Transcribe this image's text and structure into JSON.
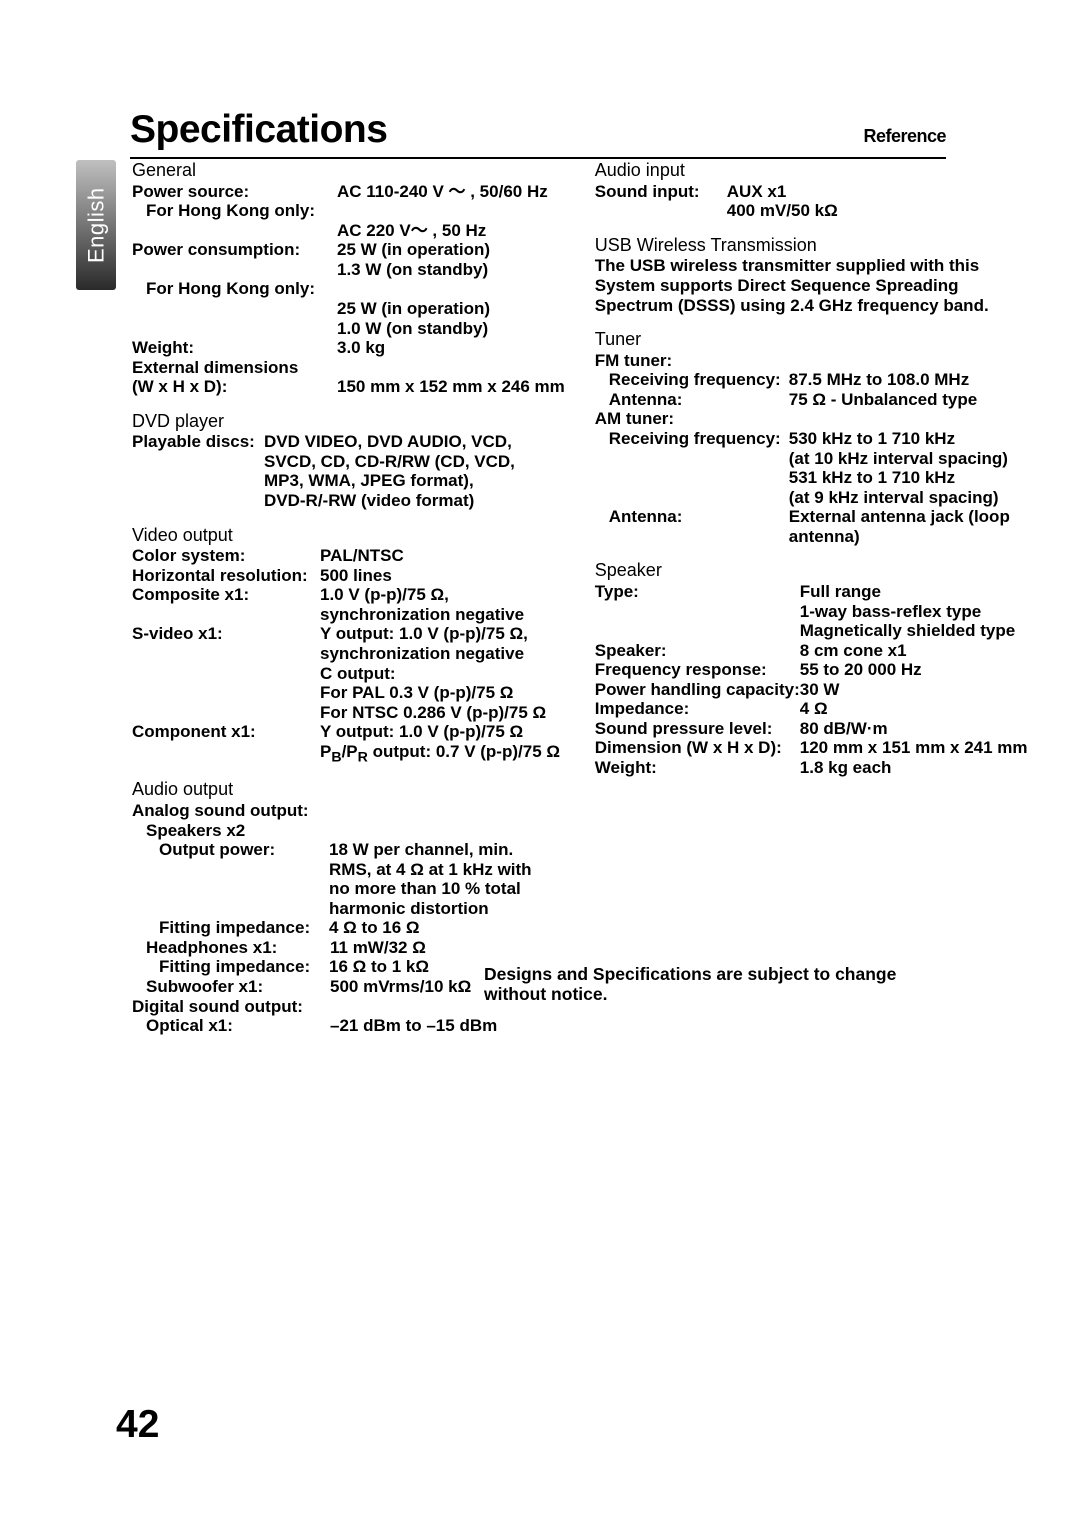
{
  "header": {
    "title": "Specifications",
    "subtitle": "Reference",
    "lang_tab": "English"
  },
  "page_number": "42",
  "notice": "Designs and Specifications are subject to change without notice.",
  "left": {
    "general": {
      "heading": "General",
      "rows": [
        {
          "label": "Power source:",
          "value": "AC 110-240 V ～ , 50/60 Hz"
        },
        {
          "label": "For Hong Kong only:",
          "indent": 1
        },
        {
          "value": "AC 220 V～ , 50 Hz"
        },
        {
          "label": "Power consumption:",
          "value": "25 W (in operation)"
        },
        {
          "value": "1.3 W (on standby)"
        },
        {
          "label": "For Hong Kong only:",
          "indent": 1
        },
        {
          "value": "25 W (in operation)"
        },
        {
          "value": "1.0 W (on standby)"
        },
        {
          "label": "Weight:",
          "value": "3.0 kg"
        },
        {
          "label": "External dimensions"
        },
        {
          "label": "(W x H x D):",
          "value": "150 mm x 152 mm x 246 mm"
        }
      ]
    },
    "dvd": {
      "heading": "DVD player",
      "rows": [
        {
          "label": "Playable discs:",
          "value": "DVD VIDEO, DVD AUDIO, VCD,",
          "wide_label": false
        },
        {
          "value": "SVCD, CD, CD-R/RW (CD, VCD,"
        },
        {
          "value": "MP3, WMA, JPEG format),"
        },
        {
          "value": "DVD-R/-RW (video format)"
        }
      ]
    },
    "video": {
      "heading": "Video output",
      "rows": [
        {
          "label": "Color system:",
          "value": "PAL/NTSC"
        },
        {
          "label": "Horizontal resolution:",
          "value": "500 lines"
        },
        {
          "label": "Composite x1:",
          "value": "1.0 V (p-p)/75 Ω,"
        },
        {
          "value": "synchronization negative"
        },
        {
          "label": "S-video x1:",
          "value": "Y output: 1.0 V (p-p)/75 Ω,"
        },
        {
          "value": "synchronization negative"
        },
        {
          "value": "C output:"
        },
        {
          "value": "For PAL 0.3 V (p-p)/75 Ω"
        },
        {
          "value": "For NTSC 0.286 V (p-p)/75 Ω"
        },
        {
          "label": "Component x1:",
          "value": "Y output: 1.0 V (p-p)/75 Ω"
        },
        {
          "value_html": "P<sub>B</sub>/P<sub>R</sub> output: 0.7 V (p-p)/75 Ω"
        }
      ]
    },
    "audio_out": {
      "heading": "Audio output",
      "rows": [
        {
          "label": "Analog sound output:"
        },
        {
          "label": "Speakers x2",
          "indent": 1
        },
        {
          "label": "Output power:",
          "value": "18 W per channel, min.",
          "indent": 2,
          "labelw": 170
        },
        {
          "value": "RMS, at 4 Ω at 1 kHz with",
          "indent_val": true
        },
        {
          "value": "no more than 10 % total",
          "indent_val": true
        },
        {
          "value": "harmonic distortion",
          "indent_val": true
        },
        {
          "label": "Fitting impedance:",
          "value": "4 Ω to 16 Ω",
          "indent": 2,
          "labelw": 170
        },
        {
          "label": "Headphones x1:",
          "value": "11 mW/32 Ω",
          "indent": 1,
          "labelw": 184
        },
        {
          "label": "Fitting impedance:",
          "value": "16 Ω to 1 kΩ",
          "indent": 2,
          "labelw": 170
        },
        {
          "label": "Subwoofer x1:",
          "value": "500 mVrms/10 kΩ",
          "indent": 1,
          "labelw": 184
        },
        {
          "label": "Digital sound output:"
        },
        {
          "label": "Optical x1:",
          "value": "–21 dBm to –15 dBm",
          "indent": 1,
          "labelw": 184
        }
      ]
    }
  },
  "right": {
    "audio_in": {
      "heading": "Audio input",
      "rows": [
        {
          "label": "Sound input:",
          "value": "AUX x1"
        },
        {
          "value": "400 mV/50 kΩ"
        }
      ]
    },
    "usb": {
      "heading": "USB Wireless Transmission",
      "para": "The USB wireless transmitter supplied with this System supports Direct Sequence Spreading Spectrum (DSSS) using 2.4 GHz frequency band."
    },
    "tuner": {
      "heading": "Tuner",
      "rows": [
        {
          "label": "FM tuner:"
        },
        {
          "label": "Receiving frequency:",
          "value": "87.5 MHz to 108.0 MHz",
          "indent": 1
        },
        {
          "label": "Antenna:",
          "value": "75 Ω - Unbalanced type",
          "indent": 1
        },
        {
          "label": "AM tuner:"
        },
        {
          "label": "Receiving frequency:",
          "value": "530 kHz to 1 710 kHz",
          "indent": 1
        },
        {
          "value": "(at 10 kHz interval spacing)"
        },
        {
          "value": "531 kHz to 1 710 kHz"
        },
        {
          "value": "(at 9 kHz interval spacing)"
        },
        {
          "label": "Antenna:",
          "value": "External antenna jack (loop",
          "indent": 1
        },
        {
          "value": "antenna)"
        }
      ]
    },
    "speaker": {
      "heading": "Speaker",
      "rows": [
        {
          "label": "Type:",
          "value": "Full range"
        },
        {
          "value": "1-way bass-reflex type"
        },
        {
          "value": "Magnetically shielded type"
        },
        {
          "label": "Speaker:",
          "value": "8 cm cone x1"
        },
        {
          "label": "Frequency response:",
          "value": "55 to 20 000 Hz"
        },
        {
          "label": "Power handling capacity:",
          "value": "30 W"
        },
        {
          "label": "Impedance:",
          "value": "4 Ω"
        },
        {
          "label": "Sound pressure level:",
          "value": "80 dB/W·m"
        },
        {
          "label": "Dimension (W x H x D):",
          "value": "120 mm x 151 mm x 241 mm"
        },
        {
          "label": "Weight:",
          "value": "1.8 kg each"
        }
      ]
    }
  }
}
